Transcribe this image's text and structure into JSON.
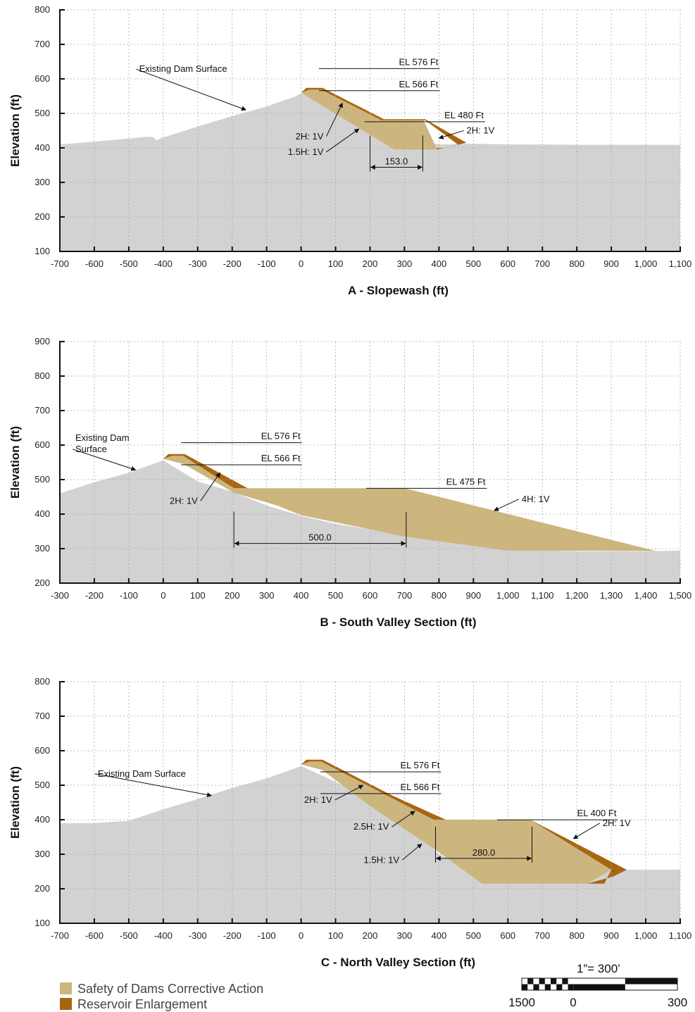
{
  "colors": {
    "ground": "#d2d2d2",
    "safety": "#cdb57e",
    "enlargement": "#a8650f",
    "grid": "#aaaaaa",
    "axis": "#111111"
  },
  "legend": {
    "items": [
      {
        "label": "Safety of Dams Corrective Action",
        "color": "#cdb57e"
      },
      {
        "label": "Reservoir Enlargement",
        "color": "#a8650f"
      }
    ]
  },
  "scale_bar": {
    "ratio": "1”= 300’",
    "labels": [
      "1500",
      "0",
      "300"
    ]
  },
  "panels": [
    {
      "title": "A - Slopewash (ft)",
      "ylabel": "Elevation (ft)",
      "xlim": [
        -700,
        1100
      ],
      "ylim": [
        100,
        800
      ],
      "x_ticks": [
        -700,
        -600,
        -500,
        -400,
        -300,
        -200,
        -100,
        0,
        100,
        200,
        300,
        400,
        500,
        600,
        700,
        800,
        900,
        1000,
        1100
      ],
      "x_tick_labels": [
        "-700",
        "-600",
        "-500",
        "-400",
        "-300",
        "-200",
        "-100",
        "0",
        "100",
        "200",
        "300",
        "400",
        "500",
        "600",
        "700",
        "800",
        "900",
        "1,000",
        "1,100"
      ],
      "y_ticks": [
        100,
        200,
        300,
        400,
        500,
        600,
        700,
        800
      ],
      "y_tick_labels": [
        "100",
        "200",
        "300",
        "400",
        "500",
        "600",
        "700",
        "800"
      ],
      "ground": [
        [
          -700,
          410
        ],
        [
          -600,
          418
        ],
        [
          -500,
          427
        ],
        [
          -450,
          432
        ],
        [
          -430,
          431
        ],
        [
          -420,
          422
        ],
        [
          -400,
          430
        ],
        [
          -350,
          446
        ],
        [
          -300,
          462
        ],
        [
          -200,
          492
        ],
        [
          -100,
          520
        ],
        [
          -20,
          548
        ],
        [
          0,
          558
        ],
        [
          50,
          540
        ],
        [
          100,
          520
        ],
        [
          200,
          480
        ],
        [
          250,
          455
        ],
        [
          300,
          430
        ],
        [
          400,
          410
        ],
        [
          500,
          412
        ],
        [
          600,
          410
        ],
        [
          700,
          410
        ],
        [
          800,
          409
        ],
        [
          900,
          409
        ],
        [
          1100,
          409
        ]
      ],
      "safety": [
        [
          0,
          560
        ],
        [
          25,
          569
        ],
        [
          58,
          569
        ],
        [
          233,
          480
        ],
        [
          355,
          480
        ],
        [
          395,
          395
        ],
        [
          270,
          395
        ]
      ],
      "enlargement": [
        [
          0,
          560
        ],
        [
          15,
          574
        ],
        [
          62,
          574
        ],
        [
          240,
          483
        ],
        [
          360,
          483
        ],
        [
          480,
          415
        ],
        [
          415,
          400
        ],
        [
          393,
          400
        ],
        [
          395,
          395
        ],
        [
          455,
          410
        ],
        [
          360,
          480
        ],
        [
          233,
          480
        ],
        [
          58,
          569
        ],
        [
          25,
          569
        ]
      ],
      "annotations": [
        {
          "label": "Existing Dam Surface",
          "tx": -470,
          "ty": 620,
          "anchor": "start",
          "ax": -160,
          "ay": 510
        },
        {
          "label": "EL 576 Ft",
          "tx": 398,
          "ty": 640,
          "anchor": "end"
        },
        {
          "label": "EL 566 Ft",
          "tx": 398,
          "ty": 576,
          "anchor": "end"
        },
        {
          "label": "EL 480 Ft",
          "tx": 530,
          "ty": 486,
          "anchor": "end"
        },
        {
          "label": "2H: 1V",
          "tx": 480,
          "ty": 442,
          "anchor": "start",
          "ax": 400,
          "ay": 428
        },
        {
          "label": "2H: 1V",
          "tx": 65,
          "ty": 425,
          "anchor": "end",
          "ax": 120,
          "ay": 530
        },
        {
          "label": "1.5H: 1V",
          "tx": 65,
          "ty": 380,
          "anchor": "end",
          "ax": 168,
          "ay": 455
        }
      ],
      "dimension": {
        "x1": 200,
        "x2": 353,
        "y": 344,
        "label": "153.0"
      }
    },
    {
      "title": "B - South Valley Section (ft)",
      "ylabel": "Elevation (ft)",
      "xlim": [
        -300,
        1500
      ],
      "ylim": [
        200,
        900
      ],
      "x_ticks": [
        -300,
        -200,
        -100,
        0,
        100,
        200,
        300,
        400,
        500,
        600,
        700,
        800,
        900,
        1000,
        1100,
        1200,
        1300,
        1400,
        1500
      ],
      "x_tick_labels": [
        "-300",
        "-200",
        "-100",
        "0",
        "100",
        "200",
        "300",
        "400",
        "500",
        "600",
        "700",
        "800",
        "900",
        "1,000",
        "1,100",
        "1,200",
        "1,300",
        "1,400",
        "1,500"
      ],
      "y_ticks": [
        200,
        300,
        400,
        500,
        600,
        700,
        800,
        900
      ],
      "y_tick_labels": [
        "200",
        "300",
        "400",
        "500",
        "600",
        "700",
        "800",
        "900"
      ],
      "ground": [
        [
          -300,
          460
        ],
        [
          -200,
          492
        ],
        [
          -100,
          520
        ],
        [
          0,
          556
        ],
        [
          50,
          525
        ],
        [
          100,
          495
        ],
        [
          200,
          465
        ],
        [
          300,
          425
        ],
        [
          400,
          395
        ],
        [
          500,
          372
        ],
        [
          700,
          338
        ],
        [
          800,
          322
        ],
        [
          1000,
          298
        ],
        [
          1200,
          292
        ],
        [
          1400,
          292
        ],
        [
          1500,
          294
        ]
      ],
      "safety": [
        [
          0,
          560
        ],
        [
          25,
          569
        ],
        [
          58,
          569
        ],
        [
          205,
          475
        ],
        [
          700,
          475
        ],
        [
          1430,
          293
        ],
        [
          1000,
          294
        ],
        [
          700,
          335
        ],
        [
          400,
          397
        ],
        [
          330,
          425
        ],
        [
          205,
          462
        ],
        [
          60,
          545
        ]
      ],
      "enlargement": [
        [
          0,
          560
        ],
        [
          15,
          574
        ],
        [
          62,
          574
        ],
        [
          245,
          475
        ],
        [
          205,
          475
        ],
        [
          58,
          569
        ],
        [
          25,
          569
        ]
      ],
      "annotations": [
        {
          "label": "Existing Dam",
          "tx": -255,
          "ty": 612,
          "anchor": "start"
        },
        {
          "label": "Surface",
          "tx": -255,
          "ty": 580,
          "anchor": "start",
          "ax": -80,
          "ay": 528
        },
        {
          "label": "EL 576 Ft",
          "tx": 398,
          "ty": 617,
          "anchor": "end"
        },
        {
          "label": "EL 566 Ft",
          "tx": 398,
          "ty": 553,
          "anchor": "end"
        },
        {
          "label": "EL 475 Ft",
          "tx": 935,
          "ty": 485,
          "anchor": "end"
        },
        {
          "label": "4H: 1V",
          "tx": 1040,
          "ty": 435,
          "anchor": "start",
          "ax": 960,
          "ay": 410
        },
        {
          "label": "2H: 1V",
          "tx": 100,
          "ty": 430,
          "anchor": "end",
          "ax": 165,
          "ay": 520
        }
      ],
      "dimension": {
        "x1": 205,
        "x2": 705,
        "y": 315,
        "label": "500.0"
      }
    },
    {
      "title": "C - North Valley Section (ft)",
      "ylabel": "Elevation (ft)",
      "xlim": [
        -700,
        1100
      ],
      "ylim": [
        100,
        800
      ],
      "x_ticks": [
        -700,
        -600,
        -500,
        -400,
        -300,
        -200,
        -100,
        0,
        100,
        200,
        300,
        400,
        500,
        600,
        700,
        800,
        900,
        1000,
        1100
      ],
      "x_tick_labels": [
        "-700",
        "-600",
        "-500",
        "-400",
        "-300",
        "-200",
        "-100",
        "0",
        "100",
        "200",
        "300",
        "400",
        "500",
        "600",
        "700",
        "800",
        "900",
        "1,000",
        "1,100"
      ],
      "y_ticks": [
        100,
        200,
        300,
        400,
        500,
        600,
        700,
        800
      ],
      "y_tick_labels": [
        "100",
        "200",
        "300",
        "400",
        "500",
        "600",
        "700",
        "800"
      ],
      "ground": [
        [
          -700,
          390
        ],
        [
          -600,
          390
        ],
        [
          -500,
          397
        ],
        [
          -400,
          430
        ],
        [
          -300,
          460
        ],
        [
          -200,
          492
        ],
        [
          -100,
          520
        ],
        [
          -20,
          548
        ],
        [
          0,
          556
        ],
        [
          100,
          510
        ],
        [
          200,
          460
        ],
        [
          300,
          405
        ],
        [
          400,
          300
        ],
        [
          500,
          255
        ],
        [
          600,
          255
        ],
        [
          800,
          255
        ],
        [
          1100,
          255
        ]
      ],
      "safety": [
        [
          0,
          560
        ],
        [
          25,
          569
        ],
        [
          58,
          569
        ],
        [
          385,
          400
        ],
        [
          665,
          400
        ],
        [
          900,
          255
        ],
        [
          830,
          215
        ],
        [
          525,
          215
        ],
        [
          380,
          320
        ],
        [
          200,
          440
        ],
        [
          60,
          545
        ]
      ],
      "enlargement": [
        [
          0,
          560
        ],
        [
          15,
          574
        ],
        [
          62,
          574
        ],
        [
          265,
          470
        ],
        [
          420,
          400
        ],
        [
          665,
          400
        ],
        [
          945,
          255
        ],
        [
          905,
          235
        ],
        [
          830,
          215
        ],
        [
          880,
          215
        ],
        [
          900,
          255
        ],
        [
          665,
          400
        ],
        [
          385,
          400
        ],
        [
          58,
          569
        ],
        [
          25,
          569
        ]
      ],
      "annotations": [
        {
          "label": "Existing Dam Surface",
          "tx": -590,
          "ty": 525,
          "anchor": "start",
          "ax": -260,
          "ay": 470
        },
        {
          "label": "EL 576 Ft",
          "tx": 402,
          "ty": 549,
          "anchor": "end"
        },
        {
          "label": "EL 566 Ft",
          "tx": 402,
          "ty": 486,
          "anchor": "end"
        },
        {
          "label": "EL 400 Ft",
          "tx": 915,
          "ty": 410,
          "anchor": "end"
        },
        {
          "label": "2H: 1V",
          "tx": 875,
          "ty": 382,
          "anchor": "start",
          "ax": 790,
          "ay": 345
        },
        {
          "label": "2H: 1V",
          "tx": 90,
          "ty": 449,
          "anchor": "end",
          "ax": 180,
          "ay": 500
        },
        {
          "label": "2.5H: 1V",
          "tx": 255,
          "ty": 371,
          "anchor": "end",
          "ax": 330,
          "ay": 425
        },
        {
          "label": "1.5H: 1V",
          "tx": 285,
          "ty": 275,
          "anchor": "end",
          "ax": 350,
          "ay": 330
        }
      ],
      "dimension": {
        "x1": 390,
        "x2": 670,
        "y": 288,
        "label": "280.0"
      }
    }
  ]
}
